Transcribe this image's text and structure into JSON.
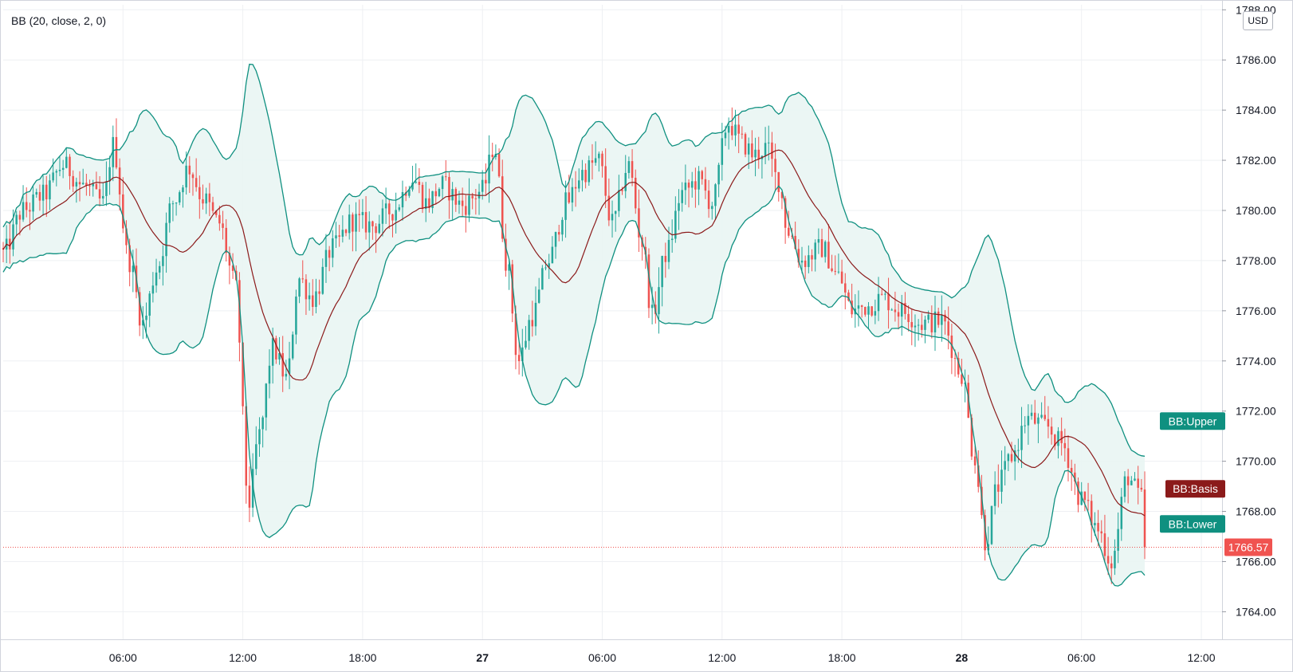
{
  "indicator_label": "BB (20, close, 2, 0)",
  "currency": "USD",
  "last_price_label": "1766.57",
  "band_labels": {
    "upper": "BB:Upper",
    "basis": "BB:Basis",
    "lower": "BB:Lower"
  },
  "colors": {
    "up": "#26a69a",
    "down": "#ef5350",
    "band_line": "#0f9080",
    "band_fill": "#e9f5f3",
    "basis": "#8b1a1a",
    "last_price": "#f05350",
    "grid": "#eef0f3",
    "axis_text": "#131722"
  },
  "chart_data": {
    "type": "candlestick",
    "title": "BB (20, close, 2, 0)",
    "ylabel": "USD",
    "y_ticks": [
      1764,
      1766,
      1768,
      1770,
      1772,
      1774,
      1776,
      1778,
      1780,
      1782,
      1784,
      1786,
      1788
    ],
    "ylim": [
      1762.9,
      1788.2
    ],
    "x_ticks": [
      {
        "label": "06:00",
        "t": 6
      },
      {
        "label": "12:00",
        "t": 12
      },
      {
        "label": "18:00",
        "t": 18
      },
      {
        "label": "27",
        "t": 24,
        "bold": true
      },
      {
        "label": "06:00",
        "t": 30
      },
      {
        "label": "12:00",
        "t": 36
      },
      {
        "label": "18:00",
        "t": 42
      },
      {
        "label": "28",
        "t": 48,
        "bold": true
      },
      {
        "label": "06:00",
        "t": 54
      },
      {
        "label": "12:00",
        "t": 60
      }
    ],
    "price_path": [
      [
        0,
        1778.3
      ],
      [
        1,
        1780.0
      ],
      [
        2,
        1780.6
      ],
      [
        3,
        1781.8
      ],
      [
        4,
        1781.0
      ],
      [
        5,
        1780.3
      ],
      [
        5.5,
        1782.6
      ],
      [
        6.3,
        1778.0
      ],
      [
        7,
        1775.5
      ],
      [
        7.7,
        1777.7
      ],
      [
        8.5,
        1780.3
      ],
      [
        9.3,
        1781.7
      ],
      [
        10,
        1780.5
      ],
      [
        10.8,
        1779.5
      ],
      [
        11.6,
        1777.1
      ],
      [
        12.3,
        1768.3
      ],
      [
        12.8,
        1771.0
      ],
      [
        13.5,
        1774.5
      ],
      [
        14.2,
        1773.3
      ],
      [
        14.8,
        1777.3
      ],
      [
        15.5,
        1776.5
      ],
      [
        16.5,
        1778.5
      ],
      [
        17.5,
        1779.6
      ],
      [
        18.5,
        1779.4
      ],
      [
        19.5,
        1780.0
      ],
      [
        20.5,
        1781.3
      ],
      [
        21.2,
        1780.3
      ],
      [
        22,
        1781.0
      ],
      [
        23,
        1780.2
      ],
      [
        24,
        1780.8
      ],
      [
        24.6,
        1782.6
      ],
      [
        25.2,
        1778.0
      ],
      [
        25.8,
        1774.0
      ],
      [
        26.5,
        1775.8
      ],
      [
        27.3,
        1778.0
      ],
      [
        28.2,
        1780.3
      ],
      [
        29,
        1781.5
      ],
      [
        29.8,
        1782.0
      ],
      [
        30.5,
        1779.5
      ],
      [
        31.3,
        1781.8
      ],
      [
        32,
        1778.7
      ],
      [
        32.5,
        1775.8
      ],
      [
        33.2,
        1778.3
      ],
      [
        34,
        1780.7
      ],
      [
        34.8,
        1781.2
      ],
      [
        35.5,
        1780.3
      ],
      [
        36.3,
        1783.5
      ],
      [
        37,
        1782.7
      ],
      [
        37.6,
        1782.2
      ],
      [
        38.2,
        1782.5
      ],
      [
        38.8,
        1781.2
      ],
      [
        39.3,
        1779.2
      ],
      [
        40,
        1778.0
      ],
      [
        41,
        1778.5
      ],
      [
        41.8,
        1777.4
      ],
      [
        42.5,
        1776.0
      ],
      [
        43.3,
        1776.2
      ],
      [
        44,
        1776.5
      ],
      [
        45,
        1776.0
      ],
      [
        46,
        1775.5
      ],
      [
        47,
        1775.6
      ],
      [
        48,
        1773.5
      ],
      [
        48.6,
        1770.3
      ],
      [
        49.2,
        1766.8
      ],
      [
        49.8,
        1769.0
      ],
      [
        50.5,
        1770.2
      ],
      [
        51.3,
        1771.7
      ],
      [
        52.2,
        1771.4
      ],
      [
        53,
        1770.7
      ],
      [
        54,
        1768.5
      ],
      [
        54.8,
        1767.3
      ],
      [
        55.5,
        1766.0
      ],
      [
        56.3,
        1769.4
      ],
      [
        57,
        1768.5
      ],
      [
        57.3,
        1766.57
      ]
    ],
    "series": [
      {
        "name": "BB:Upper",
        "role": "upper",
        "last": 1771.1
      },
      {
        "name": "BB:Basis",
        "role": "basis",
        "last": 1768.95
      },
      {
        "name": "BB:Lower",
        "role": "lower",
        "last": 1767.3
      }
    ],
    "bb_settings": {
      "length": 20,
      "source": "close",
      "stddev": 2,
      "offset": 0
    },
    "last_price": 1766.57,
    "grid": true
  }
}
